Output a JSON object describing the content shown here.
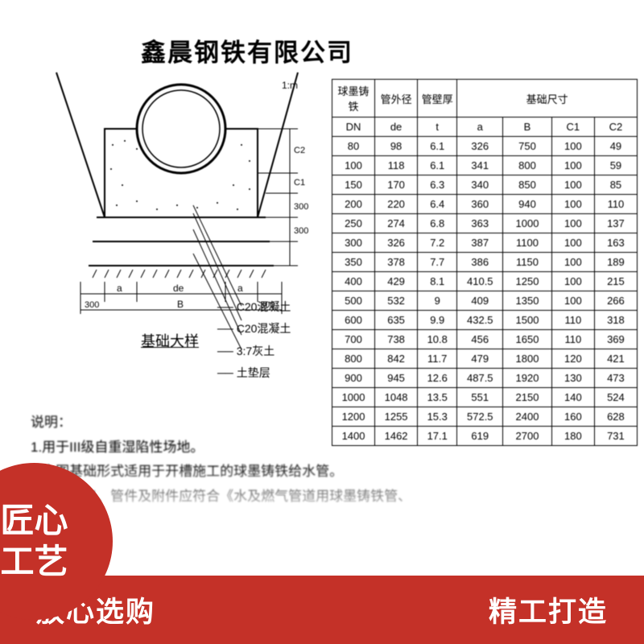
{
  "company_name": "鑫晨钢铁有限公司",
  "diagram": {
    "caption": "基础大样",
    "labels": {
      "dim_a_left": "a",
      "dim_de": "de",
      "dim_a_right": "a",
      "dim_B": "B",
      "dim_300_left": "300",
      "dim_300_right": "300",
      "dim_300_v1": "300",
      "dim_300_v2": "300",
      "dim_C1": "C1",
      "dim_C2": "C2",
      "slope": "1:m"
    },
    "legend": [
      "── C20混凝土",
      "── C20混凝土",
      "── 3:7灰土",
      "── 土垫层"
    ]
  },
  "notes": {
    "title": "说明：",
    "items": [
      "1.用于III级自重湿陷性场地。",
      "2.本图基础形式适用于开槽施工的球墨铸铁给水管。",
      "3.管道接口、管件及附件应符合《水及燃气管道用球墨铸铁管、"
    ]
  },
  "table": {
    "group_headers": [
      "球墨铸铁",
      "管外径",
      "管壁厚",
      "基础尺寸"
    ],
    "headers": [
      "DN",
      "de",
      "t",
      "a",
      "B",
      "C1",
      "C2"
    ],
    "rows": [
      [
        "80",
        "98",
        "6.1",
        "326",
        "750",
        "100",
        "49"
      ],
      [
        "100",
        "118",
        "6.1",
        "341",
        "800",
        "100",
        "59"
      ],
      [
        "150",
        "170",
        "6.3",
        "340",
        "850",
        "100",
        "85"
      ],
      [
        "200",
        "220",
        "6.4",
        "360",
        "940",
        "100",
        "110"
      ],
      [
        "250",
        "274",
        "6.8",
        "363",
        "1000",
        "100",
        "137"
      ],
      [
        "300",
        "326",
        "7.2",
        "387",
        "1100",
        "100",
        "163"
      ],
      [
        "350",
        "378",
        "7.7",
        "386",
        "1150",
        "100",
        "189"
      ],
      [
        "400",
        "429",
        "8.1",
        "410.5",
        "1250",
        "100",
        "215"
      ],
      [
        "500",
        "532",
        "9",
        "409",
        "1350",
        "100",
        "266"
      ],
      [
        "600",
        "635",
        "9.9",
        "432.5",
        "1500",
        "110",
        "318"
      ],
      [
        "700",
        "738",
        "10.8",
        "456",
        "1650",
        "110",
        "369"
      ],
      [
        "800",
        "842",
        "11.7",
        "479",
        "1800",
        "120",
        "421"
      ],
      [
        "900",
        "945",
        "12.6",
        "487.5",
        "1920",
        "130",
        "473"
      ],
      [
        "1000",
        "1048",
        "13.5",
        "551",
        "2150",
        "140",
        "524"
      ],
      [
        "1200",
        "1255",
        "15.3",
        "572.5",
        "2400",
        "160",
        "628"
      ],
      [
        "1400",
        "1462",
        "17.1",
        "619",
        "2700",
        "180",
        "731"
      ]
    ],
    "col_widths": [
      "14%",
      "14%",
      "13%",
      "15%",
      "16%",
      "14%",
      "14%"
    ]
  },
  "red_circle": {
    "line1": "匠心",
    "line2": "工艺"
  },
  "banner": {
    "left": "放心选购",
    "right": "精工打造"
  },
  "colors": {
    "brand_red": "#c43128",
    "text_black": "#000000",
    "white": "#ffffff"
  }
}
